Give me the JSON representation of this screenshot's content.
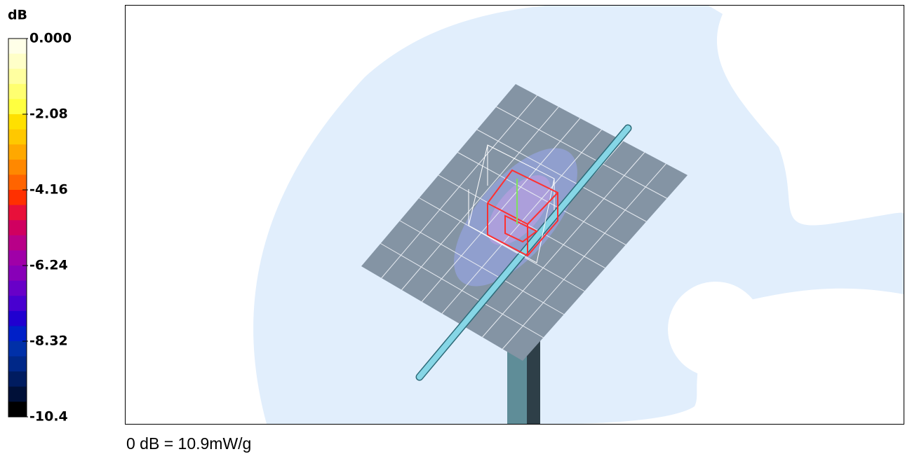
{
  "colorbar": {
    "unit": "dB",
    "ticks": [
      "0.000",
      "-2.08",
      "-4.16",
      "-6.24",
      "-8.32",
      "-10.4"
    ],
    "colors": [
      "#ffffe8",
      "#ffffc8",
      "#ffffa0",
      "#ffff70",
      "#ffff40",
      "#ffe000",
      "#ffc800",
      "#ffa800",
      "#ff8800",
      "#ff6400",
      "#ff3000",
      "#e8103a",
      "#d00060",
      "#b80088",
      "#a000a8",
      "#8800b8",
      "#6800c8",
      "#4800d0",
      "#2000d0",
      "#0020c8",
      "#0030a8",
      "#002888",
      "#001c60",
      "#001038",
      "#000000"
    ]
  },
  "caption": "0 dB = 10.9mW/g"
}
